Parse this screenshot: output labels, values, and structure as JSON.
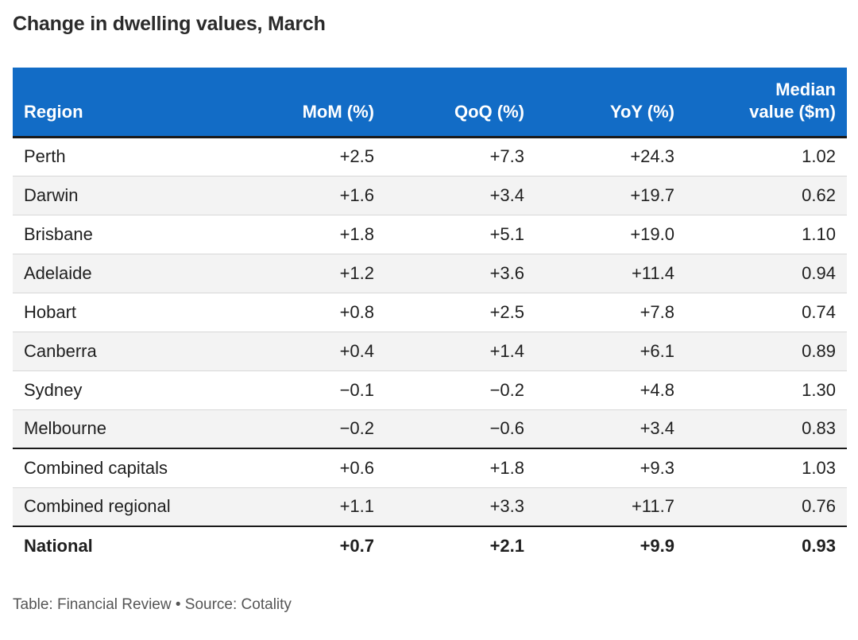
{
  "title": "Change in dwelling values, March",
  "footer": "Table: Financial Review • Source: Cotality",
  "colors": {
    "header_bg": "#126cc6",
    "header_text": "#ffffff",
    "row_alt": "#f3f3f3"
  },
  "chart_data": {
    "type": "table",
    "title": "Change in dwelling values, March",
    "columns": [
      "Region",
      "MoM (%)",
      "QoQ (%)",
      "YoY (%)",
      "Median value ($m)"
    ],
    "headers": {
      "region": "Region",
      "mom": "MoM (%)",
      "qoq": "QoQ (%)",
      "yoy": "YoY (%)",
      "median_line1": "Median",
      "median_line2": "value ($m)"
    },
    "rows": [
      {
        "region": "Perth",
        "mom": "+2.5",
        "qoq": "+7.3",
        "yoy": "+24.3",
        "median": "1.02"
      },
      {
        "region": "Darwin",
        "mom": "+1.6",
        "qoq": "+3.4",
        "yoy": "+19.7",
        "median": "0.62"
      },
      {
        "region": "Brisbane",
        "mom": "+1.8",
        "qoq": "+5.1",
        "yoy": "+19.0",
        "median": "1.10"
      },
      {
        "region": "Adelaide",
        "mom": "+1.2",
        "qoq": "+3.6",
        "yoy": "+11.4",
        "median": "0.94"
      },
      {
        "region": "Hobart",
        "mom": "+0.8",
        "qoq": "+2.5",
        "yoy": "+7.8",
        "median": "0.74"
      },
      {
        "region": "Canberra",
        "mom": "+0.4",
        "qoq": "+1.4",
        "yoy": "+6.1",
        "median": "0.89"
      },
      {
        "region": "Sydney",
        "mom": "−0.1",
        "qoq": "−0.2",
        "yoy": "+4.8",
        "median": "1.30"
      },
      {
        "region": "Melbourne",
        "mom": "−0.2",
        "qoq": "−0.6",
        "yoy": "+3.4",
        "median": "0.83"
      },
      {
        "region": "Combined capitals",
        "mom": "+0.6",
        "qoq": "+1.8",
        "yoy": "+9.3",
        "median": "1.03"
      },
      {
        "region": "Combined regional",
        "mom": "+1.1",
        "qoq": "+3.3",
        "yoy": "+11.7",
        "median": "0.76"
      },
      {
        "region": "National",
        "mom": "+0.7",
        "qoq": "+2.1",
        "yoy": "+9.9",
        "median": "0.93"
      }
    ]
  }
}
